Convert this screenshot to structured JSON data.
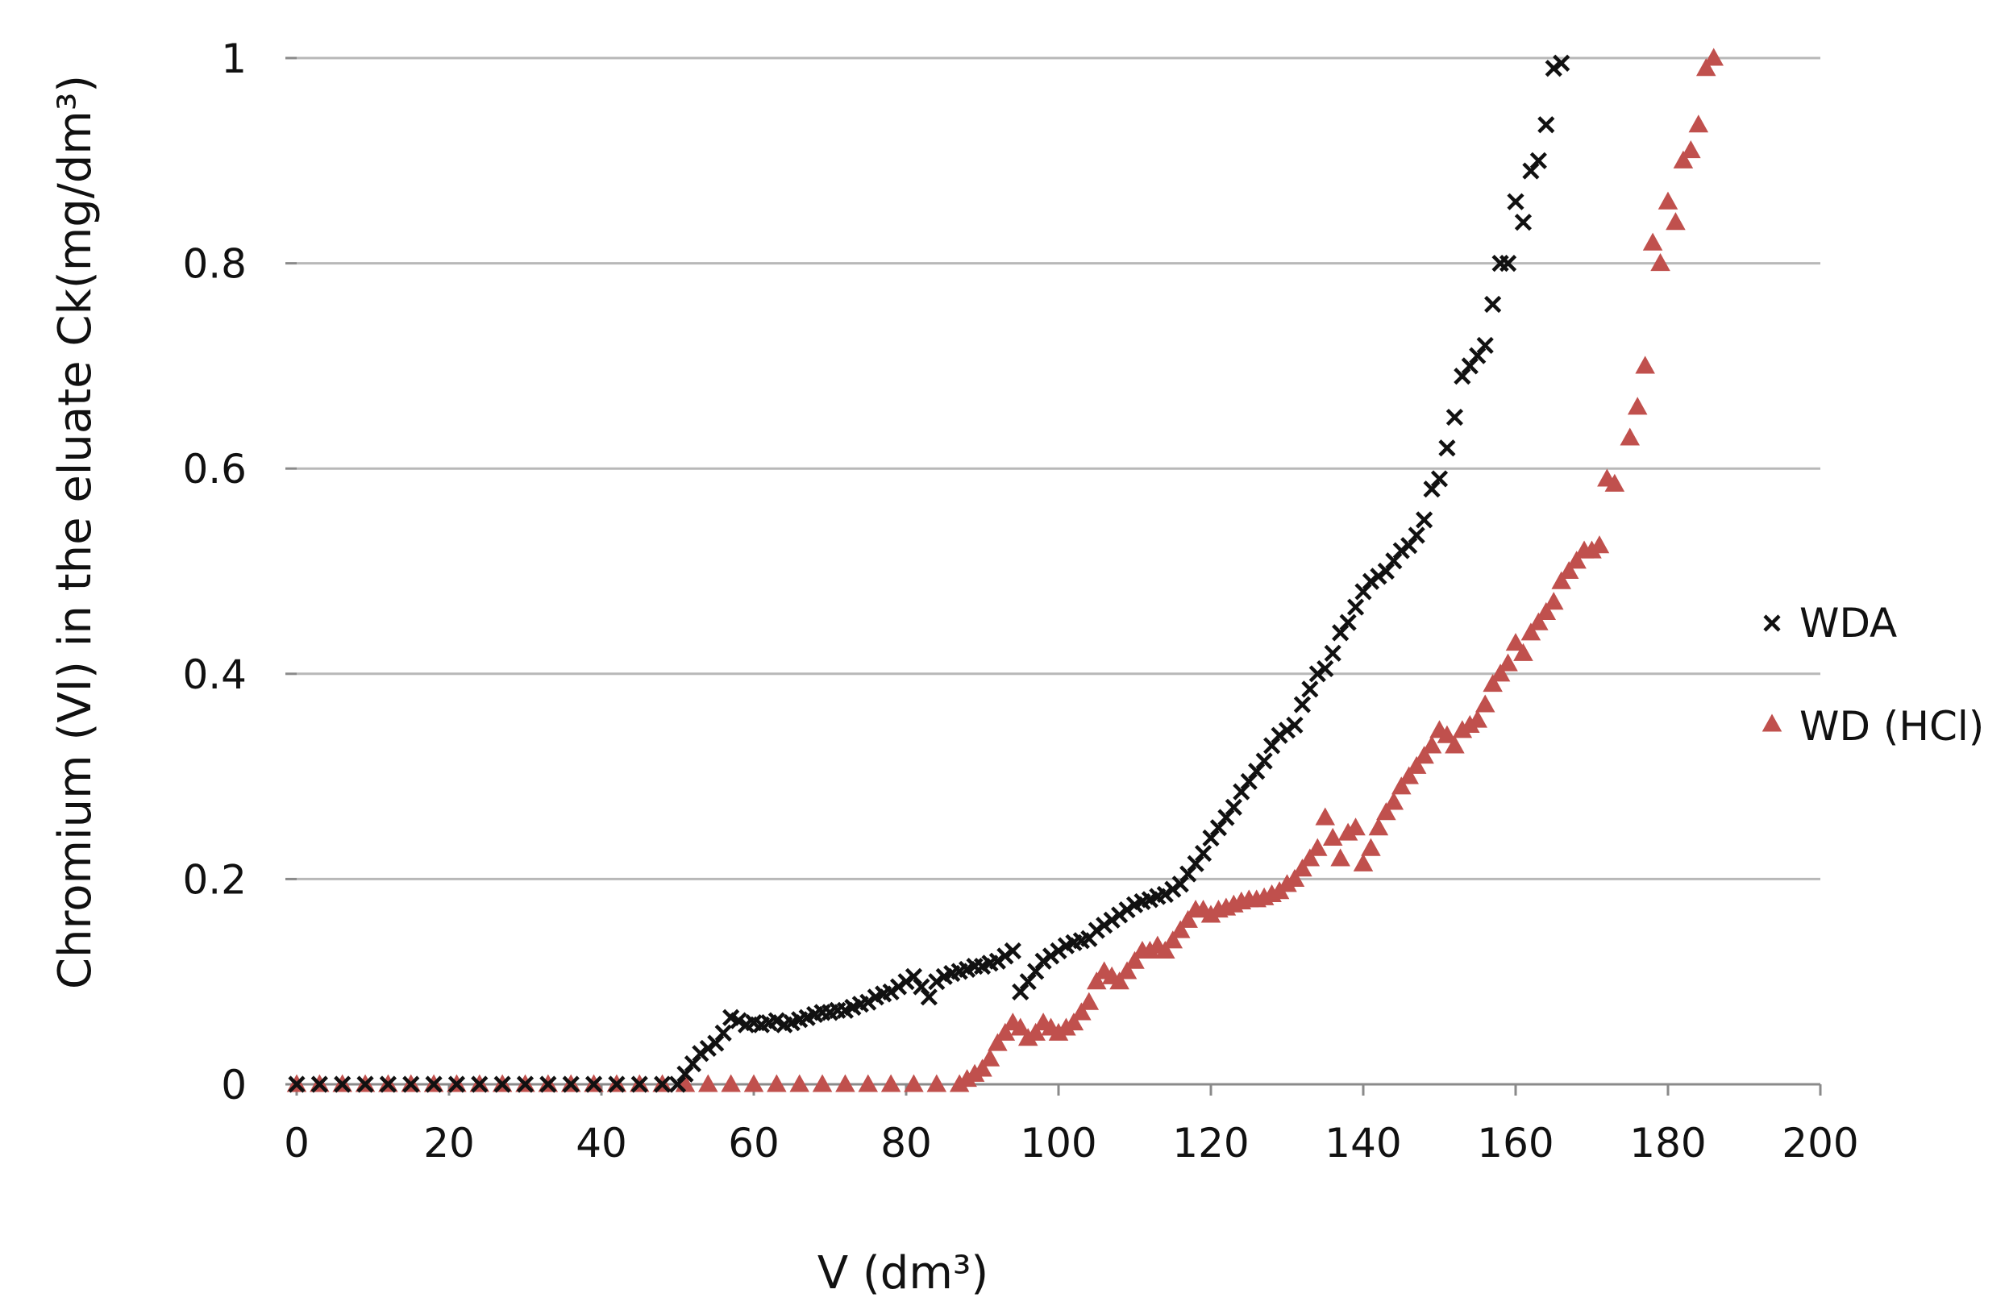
{
  "chart_data": {
    "type": "scatter",
    "title": "",
    "xlabel": "V (dm³)",
    "ylabel": "Chromium (VI) in the eluate Ck(mg/dm³)",
    "xlim": [
      0,
      200
    ],
    "ylim": [
      0,
      1
    ],
    "x_ticks": [
      "0",
      "20",
      "40",
      "60",
      "80",
      "100",
      "120",
      "140",
      "160",
      "180",
      "200"
    ],
    "y_ticks": [
      "0",
      "0.2",
      "0.4",
      "0.6",
      "0.8",
      "1"
    ],
    "grid": "horizontal",
    "legend": "right",
    "series": [
      {
        "name": "WDA",
        "color": "#111111",
        "marker": "x",
        "points": [
          [
            0,
            0
          ],
          [
            3,
            0
          ],
          [
            6,
            0
          ],
          [
            9,
            0
          ],
          [
            12,
            0
          ],
          [
            15,
            0
          ],
          [
            18,
            0
          ],
          [
            21,
            0
          ],
          [
            24,
            0
          ],
          [
            27,
            0
          ],
          [
            30,
            0
          ],
          [
            33,
            0
          ],
          [
            36,
            0
          ],
          [
            39,
            0
          ],
          [
            42,
            0
          ],
          [
            45,
            0
          ],
          [
            48,
            0
          ],
          [
            50,
            0
          ],
          [
            51,
            0.01
          ],
          [
            52,
            0.02
          ],
          [
            53,
            0.03
          ],
          [
            54,
            0.035
          ],
          [
            55,
            0.04
          ],
          [
            56,
            0.05
          ],
          [
            57,
            0.065
          ],
          [
            58,
            0.062
          ],
          [
            59,
            0.058
          ],
          [
            60,
            0.06
          ],
          [
            61,
            0.058
          ],
          [
            62,
            0.06
          ],
          [
            63,
            0.062
          ],
          [
            64,
            0.058
          ],
          [
            65,
            0.06
          ],
          [
            66,
            0.063
          ],
          [
            67,
            0.065
          ],
          [
            68,
            0.068
          ],
          [
            69,
            0.07
          ],
          [
            70,
            0.07
          ],
          [
            71,
            0.072
          ],
          [
            72,
            0.072
          ],
          [
            73,
            0.075
          ],
          [
            74,
            0.078
          ],
          [
            75,
            0.08
          ],
          [
            76,
            0.085
          ],
          [
            77,
            0.088
          ],
          [
            78,
            0.09
          ],
          [
            79,
            0.095
          ],
          [
            80,
            0.1
          ],
          [
            81,
            0.105
          ],
          [
            82,
            0.095
          ],
          [
            83,
            0.085
          ],
          [
            84,
            0.1
          ],
          [
            85,
            0.105
          ],
          [
            86,
            0.108
          ],
          [
            87,
            0.11
          ],
          [
            88,
            0.112
          ],
          [
            89,
            0.115
          ],
          [
            90,
            0.115
          ],
          [
            91,
            0.118
          ],
          [
            92,
            0.12
          ],
          [
            93,
            0.125
          ],
          [
            94,
            0.13
          ],
          [
            95,
            0.09
          ],
          [
            96,
            0.1
          ],
          [
            97,
            0.11
          ],
          [
            98,
            0.12
          ],
          [
            99,
            0.125
          ],
          [
            100,
            0.13
          ],
          [
            101,
            0.135
          ],
          [
            102,
            0.138
          ],
          [
            103,
            0.14
          ],
          [
            104,
            0.142
          ],
          [
            105,
            0.15
          ],
          [
            106,
            0.155
          ],
          [
            107,
            0.16
          ],
          [
            108,
            0.165
          ],
          [
            109,
            0.17
          ],
          [
            110,
            0.175
          ],
          [
            111,
            0.178
          ],
          [
            112,
            0.18
          ],
          [
            113,
            0.183
          ],
          [
            114,
            0.185
          ],
          [
            115,
            0.19
          ],
          [
            116,
            0.195
          ],
          [
            117,
            0.205
          ],
          [
            118,
            0.215
          ],
          [
            119,
            0.225
          ],
          [
            120,
            0.24
          ],
          [
            121,
            0.25
          ],
          [
            122,
            0.26
          ],
          [
            123,
            0.27
          ],
          [
            124,
            0.285
          ],
          [
            125,
            0.295
          ],
          [
            126,
            0.305
          ],
          [
            127,
            0.315
          ],
          [
            128,
            0.33
          ],
          [
            129,
            0.34
          ],
          [
            130,
            0.345
          ],
          [
            131,
            0.35
          ],
          [
            132,
            0.37
          ],
          [
            133,
            0.385
          ],
          [
            134,
            0.4
          ],
          [
            135,
            0.405
          ],
          [
            136,
            0.42
          ],
          [
            137,
            0.44
          ],
          [
            138,
            0.45
          ],
          [
            139,
            0.465
          ],
          [
            140,
            0.48
          ],
          [
            141,
            0.49
          ],
          [
            142,
            0.495
          ],
          [
            143,
            0.5
          ],
          [
            144,
            0.51
          ],
          [
            145,
            0.52
          ],
          [
            146,
            0.525
          ],
          [
            147,
            0.535
          ],
          [
            148,
            0.55
          ],
          [
            149,
            0.58
          ],
          [
            150,
            0.59
          ],
          [
            151,
            0.62
          ],
          [
            152,
            0.65
          ],
          [
            153,
            0.69
          ],
          [
            154,
            0.7
          ],
          [
            155,
            0.71
          ],
          [
            156,
            0.72
          ],
          [
            157,
            0.76
          ],
          [
            158,
            0.8
          ],
          [
            159,
            0.8
          ],
          [
            160,
            0.86
          ],
          [
            161,
            0.84
          ],
          [
            162,
            0.89
          ],
          [
            163,
            0.9
          ],
          [
            164,
            0.935
          ],
          [
            165,
            0.99
          ],
          [
            166,
            0.995
          ]
        ]
      },
      {
        "name": "WD (HCl)",
        "color": "#c0504d",
        "marker": "triangle",
        "points": [
          [
            0,
            0
          ],
          [
            3,
            0
          ],
          [
            6,
            0
          ],
          [
            9,
            0
          ],
          [
            12,
            0
          ],
          [
            15,
            0
          ],
          [
            18,
            0
          ],
          [
            21,
            0
          ],
          [
            24,
            0
          ],
          [
            27,
            0
          ],
          [
            30,
            0
          ],
          [
            33,
            0
          ],
          [
            36,
            0
          ],
          [
            39,
            0
          ],
          [
            42,
            0
          ],
          [
            45,
            0
          ],
          [
            48,
            0
          ],
          [
            51,
            0
          ],
          [
            54,
            0
          ],
          [
            57,
            0
          ],
          [
            60,
            0
          ],
          [
            63,
            0
          ],
          [
            66,
            0
          ],
          [
            69,
            0
          ],
          [
            72,
            0
          ],
          [
            75,
            0
          ],
          [
            78,
            0
          ],
          [
            81,
            0
          ],
          [
            84,
            0
          ],
          [
            87,
            0
          ],
          [
            88,
            0.005
          ],
          [
            89,
            0.01
          ],
          [
            90,
            0.015
          ],
          [
            91,
            0.025
          ],
          [
            92,
            0.04
          ],
          [
            93,
            0.05
          ],
          [
            94,
            0.06
          ],
          [
            95,
            0.055
          ],
          [
            96,
            0.045
          ],
          [
            97,
            0.05
          ],
          [
            98,
            0.06
          ],
          [
            99,
            0.055
          ],
          [
            100,
            0.05
          ],
          [
            101,
            0.055
          ],
          [
            102,
            0.06
          ],
          [
            103,
            0.07
          ],
          [
            104,
            0.08
          ],
          [
            105,
            0.1
          ],
          [
            106,
            0.11
          ],
          [
            107,
            0.105
          ],
          [
            108,
            0.1
          ],
          [
            109,
            0.11
          ],
          [
            110,
            0.12
          ],
          [
            111,
            0.13
          ],
          [
            112,
            0.13
          ],
          [
            113,
            0.135
          ],
          [
            114,
            0.13
          ],
          [
            115,
            0.14
          ],
          [
            116,
            0.15
          ],
          [
            117,
            0.16
          ],
          [
            118,
            0.17
          ],
          [
            119,
            0.17
          ],
          [
            120,
            0.165
          ],
          [
            121,
            0.17
          ],
          [
            122,
            0.172
          ],
          [
            123,
            0.175
          ],
          [
            124,
            0.178
          ],
          [
            125,
            0.18
          ],
          [
            126,
            0.18
          ],
          [
            127,
            0.182
          ],
          [
            128,
            0.185
          ],
          [
            129,
            0.188
          ],
          [
            130,
            0.195
          ],
          [
            131,
            0.2
          ],
          [
            132,
            0.21
          ],
          [
            133,
            0.22
          ],
          [
            134,
            0.23
          ],
          [
            135,
            0.26
          ],
          [
            136,
            0.24
          ],
          [
            137,
            0.22
          ],
          [
            138,
            0.245
          ],
          [
            139,
            0.25
          ],
          [
            140,
            0.215
          ],
          [
            141,
            0.23
          ],
          [
            142,
            0.25
          ],
          [
            143,
            0.265
          ],
          [
            144,
            0.275
          ],
          [
            145,
            0.29
          ],
          [
            146,
            0.3
          ],
          [
            147,
            0.31
          ],
          [
            148,
            0.32
          ],
          [
            149,
            0.33
          ],
          [
            150,
            0.345
          ],
          [
            151,
            0.34
          ],
          [
            152,
            0.33
          ],
          [
            153,
            0.345
          ],
          [
            154,
            0.35
          ],
          [
            155,
            0.355
          ],
          [
            156,
            0.37
          ],
          [
            157,
            0.39
          ],
          [
            158,
            0.4
          ],
          [
            159,
            0.41
          ],
          [
            160,
            0.43
          ],
          [
            161,
            0.42
          ],
          [
            162,
            0.44
          ],
          [
            163,
            0.45
          ],
          [
            164,
            0.46
          ],
          [
            165,
            0.47
          ],
          [
            166,
            0.49
          ],
          [
            167,
            0.5
          ],
          [
            168,
            0.51
          ],
          [
            169,
            0.52
          ],
          [
            170,
            0.52
          ],
          [
            171,
            0.525
          ],
          [
            172,
            0.59
          ],
          [
            173,
            0.585
          ],
          [
            175,
            0.63
          ],
          [
            176,
            0.66
          ],
          [
            177,
            0.7
          ],
          [
            178,
            0.82
          ],
          [
            179,
            0.8
          ],
          [
            180,
            0.86
          ],
          [
            181,
            0.84
          ],
          [
            182,
            0.9
          ],
          [
            183,
            0.91
          ],
          [
            184,
            0.935
          ],
          [
            185,
            0.99
          ],
          [
            186,
            1.0
          ]
        ]
      }
    ]
  }
}
